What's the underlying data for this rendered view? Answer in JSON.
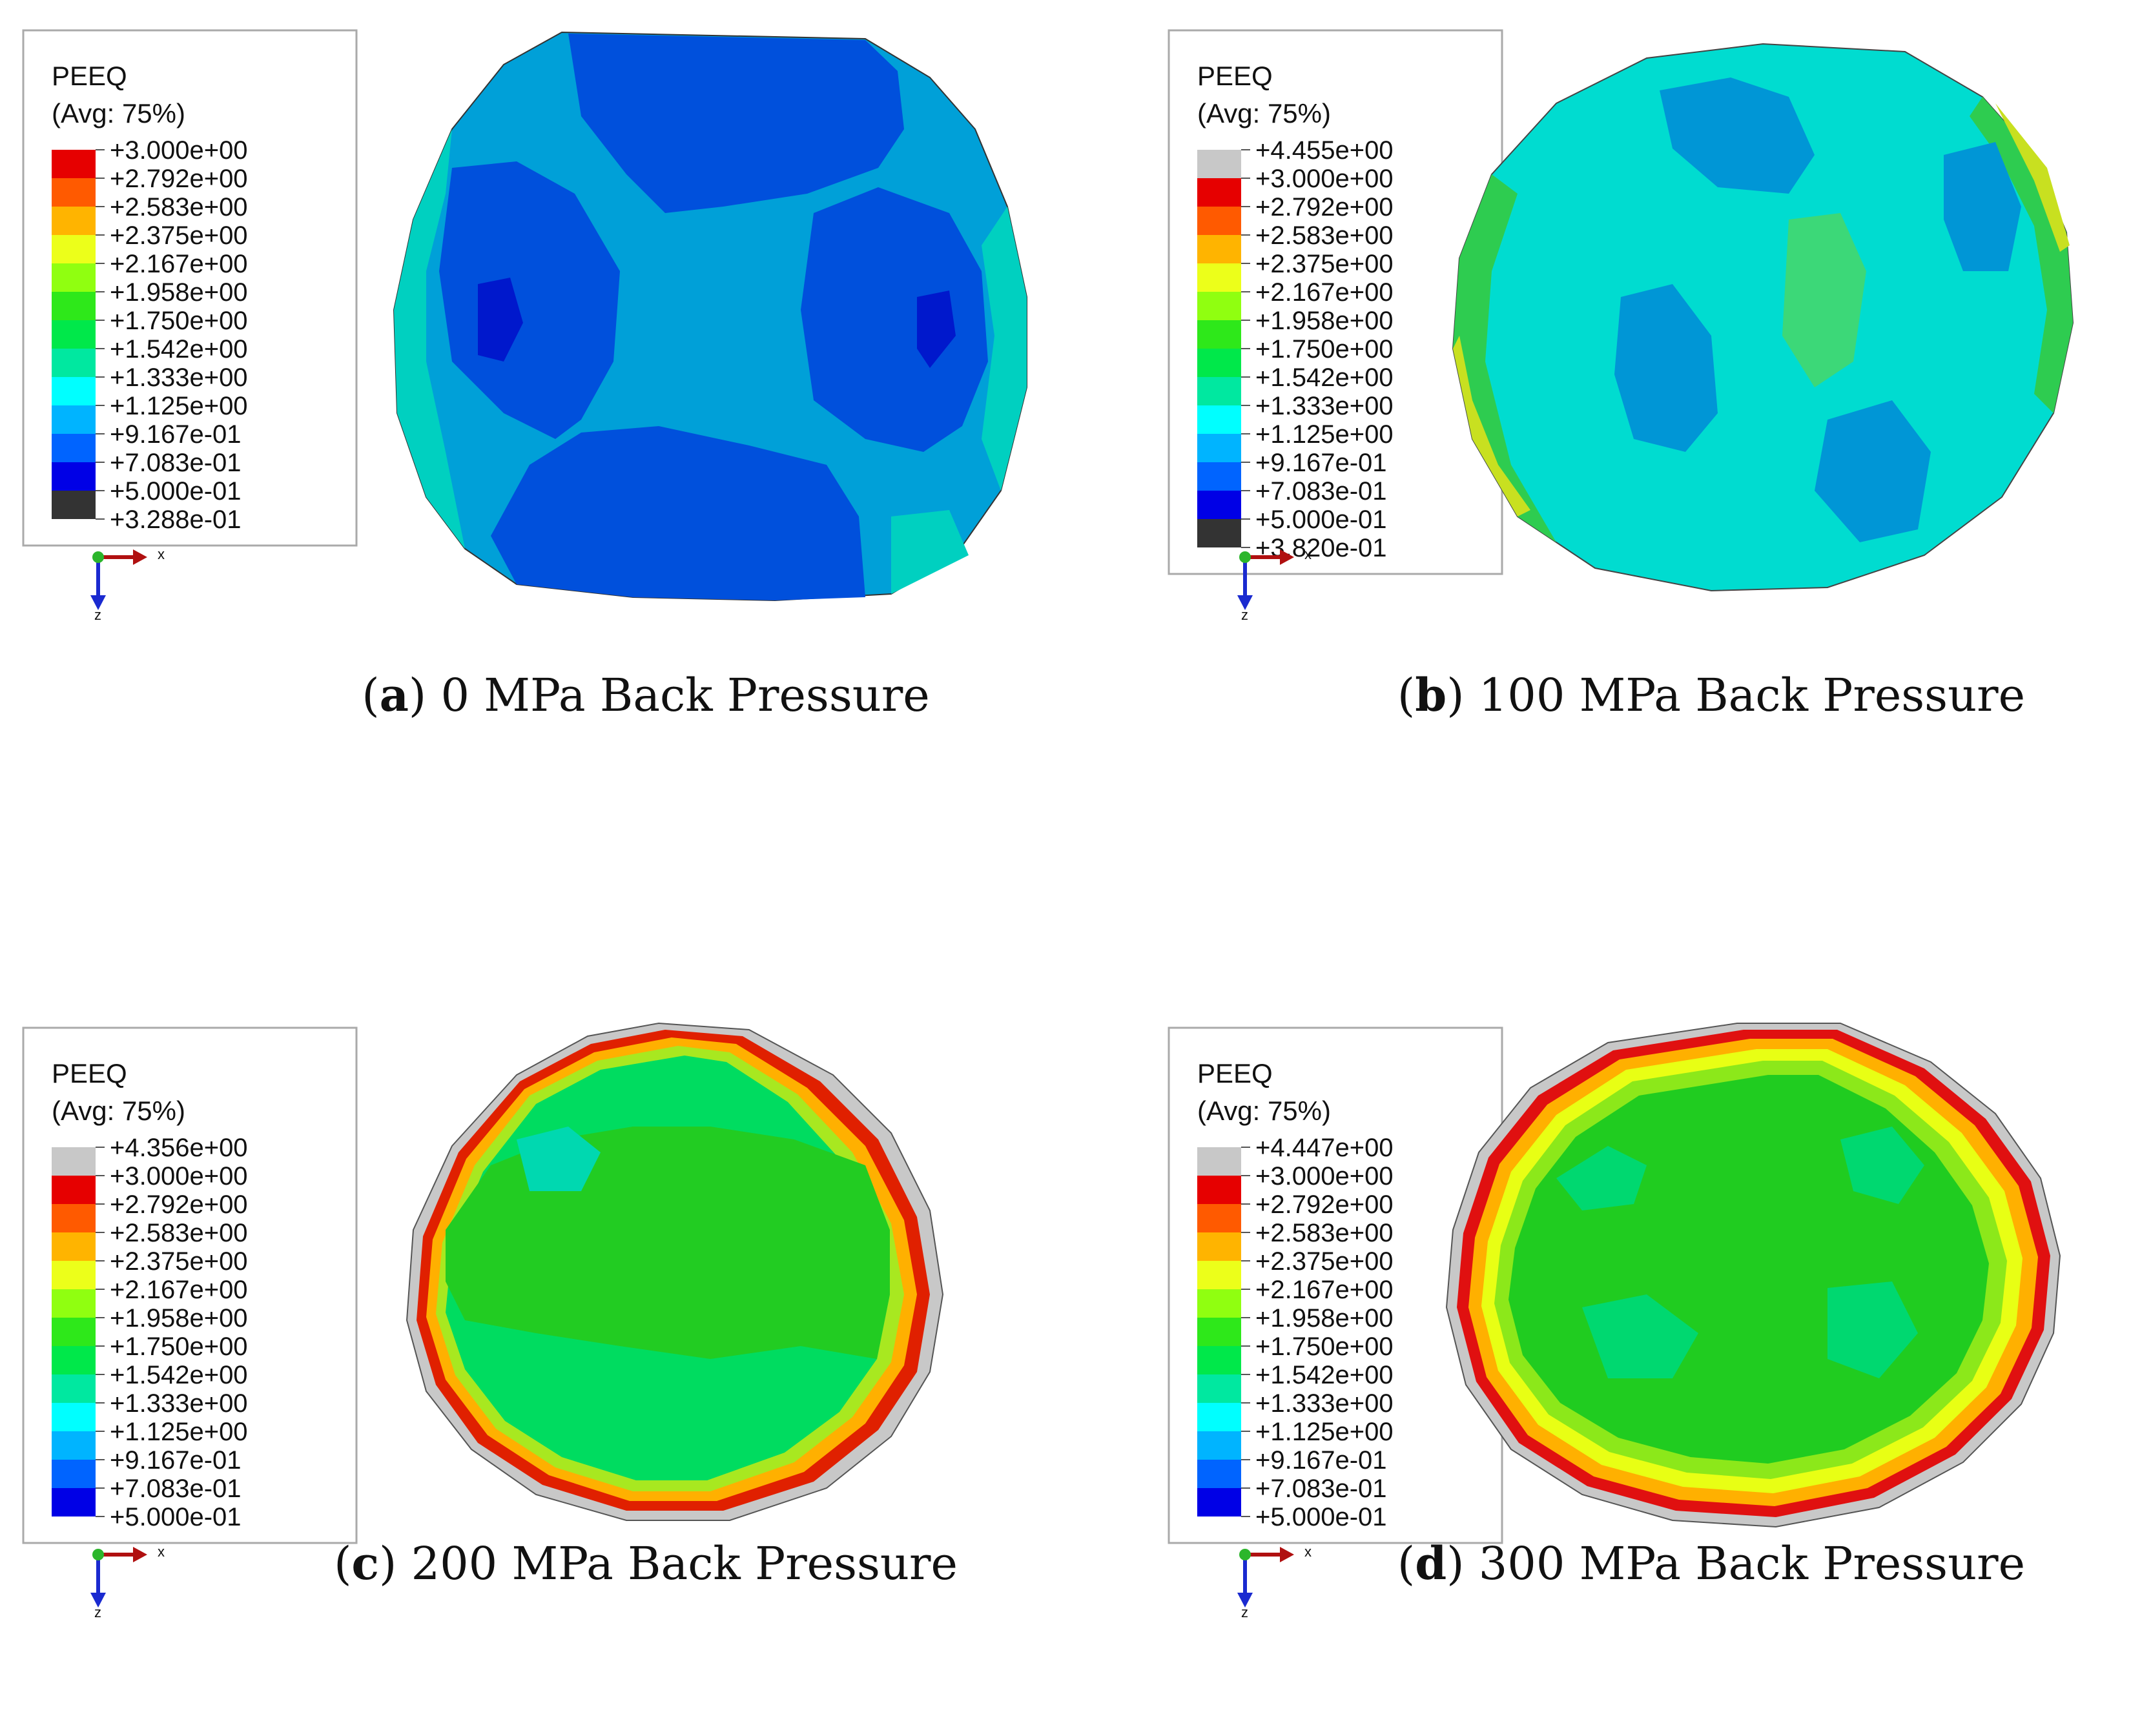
{
  "legend_common": {
    "variable": "PEEQ",
    "avg": "(Avg: 75%)",
    "axis_x": "x",
    "axis_z": "z"
  },
  "colors": {
    "scale": [
      "#d90000",
      "#ff5a00",
      "#ffb400",
      "#e8ff14",
      "#8cff14",
      "#2ee81a",
      "#00e84a",
      "#00ffc0",
      "#00e8ff",
      "#00b4ff",
      "#0064ff",
      "#0000ff",
      "#222222",
      "#c8c8c8"
    ]
  },
  "panels": [
    {
      "letter": "a",
      "caption": "0 MPa Back Pressure",
      "legend_values": [
        "+3.000e+00",
        "+2.792e+00",
        "+2.583e+00",
        "+2.375e+00",
        "+2.167e+00",
        "+1.958e+00",
        "+1.750e+00",
        "+1.542e+00",
        "+1.333e+00",
        "+1.125e+00",
        "+9.167e-01",
        "+7.083e-01",
        "+5.000e-01",
        "+3.288e-01"
      ],
      "legend_swatches": [
        "#e60000",
        "#ff5a00",
        "#ffb400",
        "#ecff1a",
        "#90ff10",
        "#2ee81a",
        "#00e84a",
        "#00e8a0",
        "#00ffff",
        "#00b4ff",
        "#0064ff",
        "#0000e6",
        "#333333"
      ]
    },
    {
      "letter": "b",
      "caption": "100 MPa Back Pressure",
      "legend_values": [
        "+4.455e+00",
        "+3.000e+00",
        "+2.792e+00",
        "+2.583e+00",
        "+2.375e+00",
        "+2.167e+00",
        "+1.958e+00",
        "+1.750e+00",
        "+1.542e+00",
        "+1.333e+00",
        "+1.125e+00",
        "+9.167e-01",
        "+7.083e-01",
        "+5.000e-01",
        "+3.820e-01"
      ],
      "legend_swatches": [
        "#c8c8c8",
        "#e60000",
        "#ff5a00",
        "#ffb400",
        "#ecff1a",
        "#90ff10",
        "#2ee81a",
        "#00e84a",
        "#00e8a0",
        "#00ffff",
        "#00b4ff",
        "#0064ff",
        "#0000e6",
        "#333333"
      ]
    },
    {
      "letter": "c",
      "caption": "200 MPa Back Pressure",
      "legend_values": [
        "+4.356e+00",
        "+3.000e+00",
        "+2.792e+00",
        "+2.583e+00",
        "+2.375e+00",
        "+2.167e+00",
        "+1.958e+00",
        "+1.750e+00",
        "+1.542e+00",
        "+1.333e+00",
        "+1.125e+00",
        "+9.167e-01",
        "+7.083e-01",
        "+5.000e-01"
      ],
      "legend_swatches": [
        "#c8c8c8",
        "#e60000",
        "#ff5a00",
        "#ffb400",
        "#ecff1a",
        "#90ff10",
        "#2ee81a",
        "#00e84a",
        "#00e8a0",
        "#00ffff",
        "#00b4ff",
        "#0064ff",
        "#0000e6"
      ]
    },
    {
      "letter": "d",
      "caption": "300 MPa Back Pressure",
      "legend_values": [
        "+4.447e+00",
        "+3.000e+00",
        "+2.792e+00",
        "+2.583e+00",
        "+2.375e+00",
        "+2.167e+00",
        "+1.958e+00",
        "+1.750e+00",
        "+1.542e+00",
        "+1.333e+00",
        "+1.125e+00",
        "+9.167e-01",
        "+7.083e-01",
        "+5.000e-01"
      ],
      "legend_swatches": [
        "#c8c8c8",
        "#e60000",
        "#ff5a00",
        "#ffb400",
        "#ecff1a",
        "#90ff10",
        "#2ee81a",
        "#00e84a",
        "#00e8a0",
        "#00ffff",
        "#00b4ff",
        "#0064ff",
        "#0000e6"
      ]
    }
  ]
}
